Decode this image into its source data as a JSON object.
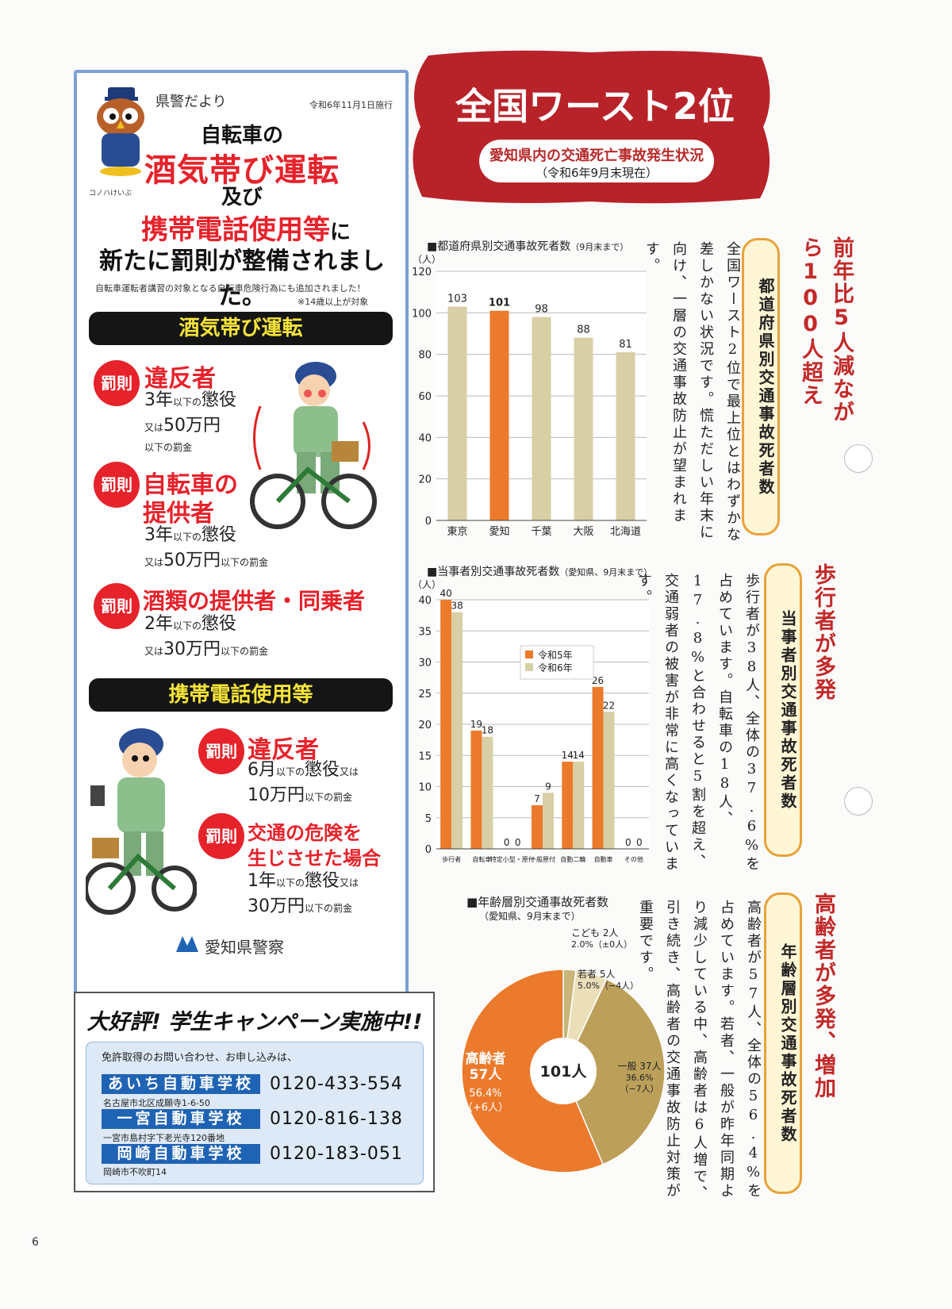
{
  "notice": {
    "header": "県警だより",
    "date": "令和6年11月1日施行",
    "mascot_name": "コノハけいぶ",
    "headline": {
      "line1": "自転車の",
      "line2": "酒気帯び運転",
      "line3": "及び",
      "line4_red": "携帯電話使用等",
      "line4_black": "に",
      "line5": "新たに罰則が整備されました。"
    },
    "note1": "自転車運転者講習の対象となる自転車危険行為にも追加されました！",
    "note2": "※14歳以上が対象",
    "section1": {
      "title": "酒気帯び運転",
      "badge": "罰則",
      "items": [
        {
          "head1": "違反者",
          "head2": "",
          "line1_main": "3年",
          "line1_small": "以下の",
          "line1_end": "懲役",
          "line2_pre": "又は",
          "line2_main": "50万円",
          "line2_small": "以下の罰金"
        },
        {
          "head1": "自転車の",
          "head2": "提供者",
          "line1_main": "3年",
          "line1_small": "以下の",
          "line1_end": "懲役",
          "line2_pre": "又は",
          "line2_main": "50万円",
          "line2_small": "以下の罰金"
        },
        {
          "head1": "酒類の提供者・同乗者",
          "head2": "",
          "line1_main": "2年",
          "line1_small": "以下の",
          "line1_end": "懲役",
          "line2_pre": "又は",
          "line2_main": "30万円",
          "line2_small": "以下の罰金"
        }
      ]
    },
    "section2": {
      "title": "携帯電話使用等",
      "badge": "罰則",
      "items": [
        {
          "head1": "違反者",
          "head2": "",
          "line1_main": "6月",
          "line1_small": "以下の",
          "line1_end": "懲役",
          "line1_tail": "又は",
          "line2_main": "10万円",
          "line2_small": "以下の罰金"
        },
        {
          "head1": "交通の危険を",
          "head2": "生じさせた場合",
          "line1_main": "1年",
          "line1_small": "以下の",
          "line1_end": "懲役",
          "line1_tail": "又は",
          "line2_main": "30万円",
          "line2_small": "以下の罰金"
        }
      ]
    },
    "police_name": "愛知県警察"
  },
  "campaign": {
    "title": "大好評! 学生キャンペーン実施中!!",
    "lead": "免許取得のお問い合わせ、お申し込みは、",
    "schools": [
      {
        "name": "あいち自動車学校",
        "phone": "0120-433-554",
        "address": "名古屋市北区成願寺1-6-50"
      },
      {
        "name": "一宮自動車学校",
        "phone": "0120-816-138",
        "address": "一宮市島村字下老光寺120番地"
      },
      {
        "name": "岡崎自動車学校",
        "phone": "0120-183-051",
        "address": "岡崎市不吹町14"
      }
    ]
  },
  "page_number": "6",
  "header": {
    "title": "全国ワースト2位",
    "subtitle": "愛知県内の交通死亡事故発生状況",
    "subtitle2": "（令和6年9月末現在）"
  },
  "articles": [
    {
      "headline": "前年比5人減ながら100人超え",
      "pill": "都道府県別交通事故死者数",
      "body": "全国ワースト2位で最上位とはわずかな差しかない状況です。慌ただしい年末に向け、一層の交通事故防止が望まれます。"
    },
    {
      "headline": "歩行者が多発",
      "pill": "当事者別交通事故死者数",
      "body": "歩行者が38人、全体の37.6%を占めています。自転車の18人、17.8%と合わせると5割を超え、交通弱者の被害が非常に高くなっています。"
    },
    {
      "headline": "高齢者が多発、増加",
      "pill": "年齢層別交通事故死者数",
      "body": "高齢者が57人、全体の56.4%を占めています。若者、一般が昨年同期より減少している中、高齢者は6人増で、引き続き、高齢者の交通事故防止対策が重要です。"
    }
  ],
  "chart_data": [
    {
      "type": "bar",
      "title": "■都道府県別交通事故死者数",
      "title_note": "（9月末まで）",
      "ylabel": "（人）",
      "ylim": [
        0,
        120
      ],
      "yticks": [
        0,
        20,
        40,
        60,
        80,
        100,
        120
      ],
      "categories": [
        "東京",
        "愛知",
        "千葉",
        "大阪",
        "北海道"
      ],
      "values": [
        103,
        101,
        98,
        88,
        81
      ],
      "highlight_index": 1,
      "colors": {
        "normal": "#d8cfa6",
        "highlight": "#ec7a2c"
      }
    },
    {
      "type": "bar",
      "title": "■当事者別交通事故死者数",
      "title_note": "（愛知県、9月末まで）",
      "ylabel": "（人）",
      "ylim": [
        0,
        40
      ],
      "yticks": [
        0,
        5,
        10,
        15,
        20,
        25,
        30,
        35,
        40
      ],
      "categories": [
        "歩行者",
        "自転車",
        "特定小型・原付",
        "一般原付",
        "自動二輪",
        "自動車",
        "その他"
      ],
      "series": [
        {
          "name": "令和5年",
          "values": [
            40,
            19,
            0,
            7,
            14,
            26,
            0
          ],
          "color": "#ec7a2c"
        },
        {
          "name": "令和6年",
          "values": [
            38,
            18,
            0,
            9,
            14,
            22,
            0
          ],
          "color": "#d8cfa6"
        }
      ],
      "legend_position": "middle-right"
    },
    {
      "type": "pie",
      "title": "■年齢層別交通事故死者数",
      "title_note": "（愛知県、9月末まで）",
      "center_label": "101人",
      "slices": [
        {
          "label": "こども",
          "count": "2人",
          "value": 2.0,
          "note": "2.0%（±0人）",
          "color": "#c9b678"
        },
        {
          "label": "若者",
          "count": "5人",
          "value": 5.0,
          "note": "5.0%（−4人）",
          "color": "#eadfb8"
        },
        {
          "label": "一般",
          "count": "37人",
          "value": 36.6,
          "note": "36.6%（−7人）",
          "color": "#bca05a"
        },
        {
          "label": "高齢者",
          "count": "57人",
          "value": 56.4,
          "note": "56.4%（+6人）",
          "color": "#ec7a2c"
        }
      ]
    }
  ]
}
